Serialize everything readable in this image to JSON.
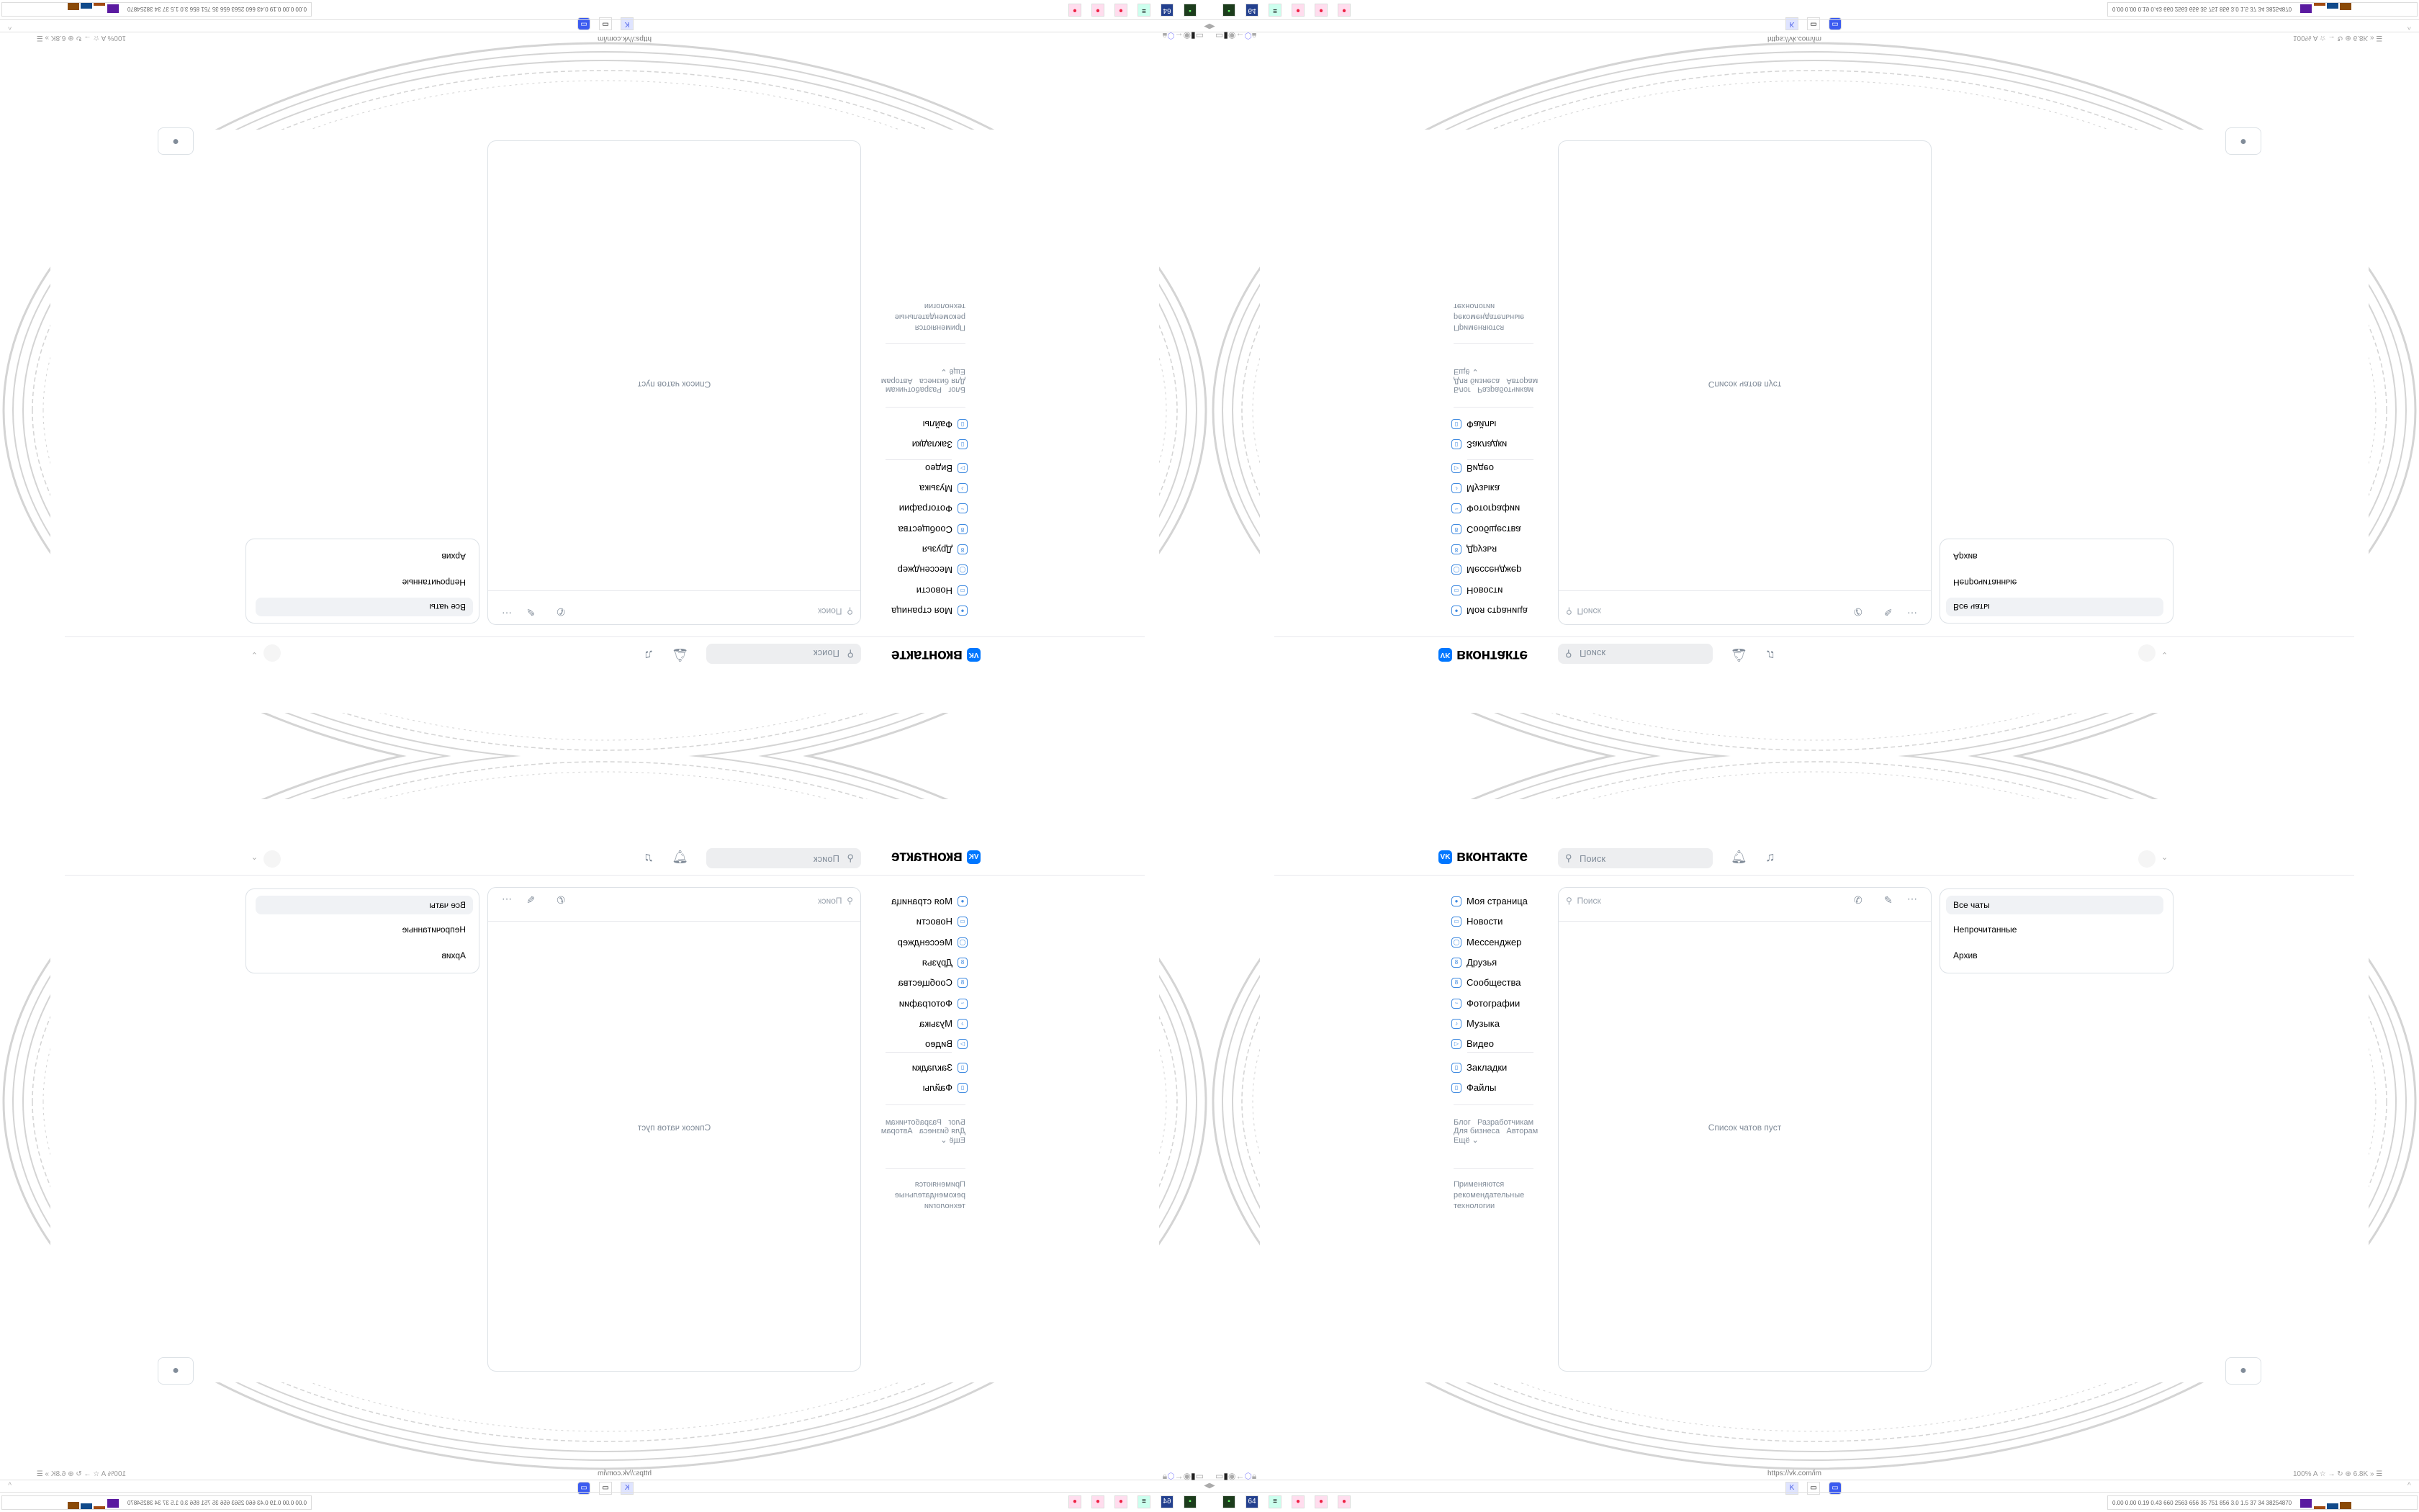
{
  "brand": {
    "logo_letter": "VK",
    "name": "вконтакте",
    "accent": "#0077ff"
  },
  "header": {
    "search_placeholder": "Поиск",
    "icons": [
      "bell-icon",
      "music-icon",
      "avatar",
      "chevron-down-icon"
    ]
  },
  "sidebar": {
    "items": [
      {
        "label": "Моя страница",
        "icon": "user-icon"
      },
      {
        "label": "Новости",
        "icon": "news-icon"
      },
      {
        "label": "Мессенджер",
        "icon": "message-icon"
      },
      {
        "label": "Друзья",
        "icon": "friends-icon"
      },
      {
        "label": "Сообщества",
        "icon": "communities-icon"
      },
      {
        "label": "Фотографии",
        "icon": "photo-icon"
      },
      {
        "label": "Музыка",
        "icon": "music-icon"
      },
      {
        "label": "Видео",
        "icon": "video-icon"
      }
    ],
    "secondary": [
      {
        "label": "Закладки",
        "icon": "bookmark-icon"
      },
      {
        "label": "Файлы",
        "icon": "file-icon"
      }
    ],
    "footer_links": [
      "Блог",
      "Разработчикам",
      "Для бизнеса",
      "Авторам",
      "Ещё ⌄"
    ],
    "recommendation_note": [
      "Применяются",
      "рекомендательные",
      "технологии"
    ]
  },
  "chat_list": {
    "search_placeholder": "Поиск",
    "empty_text": "Список чатов пуст"
  },
  "filters": [
    {
      "label": "Все чаты",
      "active": true
    },
    {
      "label": "Непрочитанные"
    },
    {
      "label": "Архив"
    }
  ],
  "browser": {
    "url": "https://vk.com/im",
    "zoom": "100%",
    "badge": "6.8K",
    "stats": "0.00 0.00 0.19 0.43 660 2563 656 35 751 856 3.0 1.5 37 34 38254870"
  }
}
